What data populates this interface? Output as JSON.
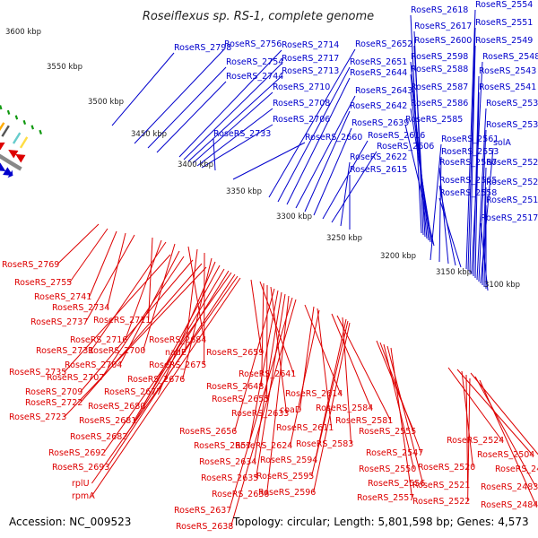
{
  "title": "Roseiflexus sp. RS-1, complete genome",
  "accession_text": "Accession: NC_009523",
  "topology_text": "Topology: circular; Length: 5,801,598 bp; Genes: 4,573",
  "colors": {
    "forward": "#0000cc",
    "reverse": "#dd0000",
    "backbone": "#888888",
    "gc": "#119911"
  },
  "kbp_ticks": [
    "3600 kbp",
    "3550 kbp",
    "3500 kbp",
    "3450 kbp",
    "3400 kbp",
    "3350 kbp",
    "3300 kbp",
    "3250 kbp",
    "3200 kbp",
    "3150 kbp",
    "3100 kbp"
  ],
  "forward_genes": [
    "RoseRS_2798",
    "RoseRS_2756",
    "RoseRS_2754",
    "RoseRS_2744",
    "RoseRS_2714",
    "RoseRS_2717",
    "RoseRS_2713",
    "RoseRS_2710",
    "RoseRS_2708",
    "RoseRS_2706",
    "RoseRS_2733",
    "RoseRS_2660",
    "RoseRS_2652",
    "RoseRS_2651",
    "RoseRS_2644",
    "RoseRS_2643",
    "RoseRS_2642",
    "RoseRS_2639",
    "RoseRS_2616",
    "RoseRS_2606",
    "RoseRS_2622",
    "RoseRS_2615",
    "RoseRS_2618",
    "RoseRS_2617",
    "RoseRS_2600",
    "RoseRS_2598",
    "RoseRS_2588",
    "RoseRS_2587",
    "RoseRS_2586",
    "RoseRS_2585",
    "RoseRS_2554",
    "RoseRS_2551",
    "RoseRS_2549",
    "RoseRS_2548",
    "RoseRS_2543",
    "RoseRS_2541",
    "RoseRS_2539",
    "RoseRS_2538",
    "RoseRS_2561",
    "RoseRS_2553",
    "RoseRS_2567",
    "RoseRS_2565",
    "RoseRS_2558",
    "solA",
    "RoseRS_2526",
    "RoseRS_2525",
    "RoseRS_2519",
    "RoseRS_2517"
  ],
  "reverse_genes": [
    "RoseRS_2769",
    "RoseRS_2755",
    "RoseRS_2741",
    "RoseRS_2734",
    "RoseRS_2737",
    "RoseRS_2711",
    "RoseRS_2716",
    "RoseRS_2731",
    "RoseRS_2700",
    "RoseRS_2684",
    "nadE",
    "RoseRS_2704",
    "RoseRS_2675",
    "RoseRS_2735",
    "RoseRS_2707",
    "RoseRS_2676",
    "RoseRS_2709",
    "RoseRS_2677",
    "RoseRS_2722",
    "RoseRS_2680",
    "RoseRS_2723",
    "RoseRS_2681",
    "RoseRS_2682",
    "RoseRS_2692",
    "RoseRS_2693",
    "rplU",
    "rpmA",
    "RoseRS_2659",
    "RoseRS_2641",
    "RoseRS_2648",
    "RoseRS_2655",
    "RoseRS_2633",
    "RoseRS_2656",
    "RoseRS_2657",
    "RoseRS_2634",
    "RoseRS_2635",
    "RoseRS_2636",
    "RoseRS_2637",
    "RoseRS_2638",
    "RoseRS_2614",
    "coaD",
    "RoseRS_2611",
    "RoseRS_2624",
    "RoseRS_2584",
    "RoseRS_2581",
    "RoseRS_2583",
    "RoseRS_2594",
    "RoseRS_2595",
    "RoseRS_2596",
    "RoseRS_2555",
    "RoseRS_2547",
    "RoseRS_2550",
    "RoseRS_2556",
    "RoseRS_2557",
    "RoseRS_2524",
    "RoseRS_2504",
    "RoseRS_2520",
    "RoseRS_2482",
    "RoseRS_2521",
    "RoseRS_2483",
    "RoseRS_2522",
    "RoseRS_2484"
  ]
}
